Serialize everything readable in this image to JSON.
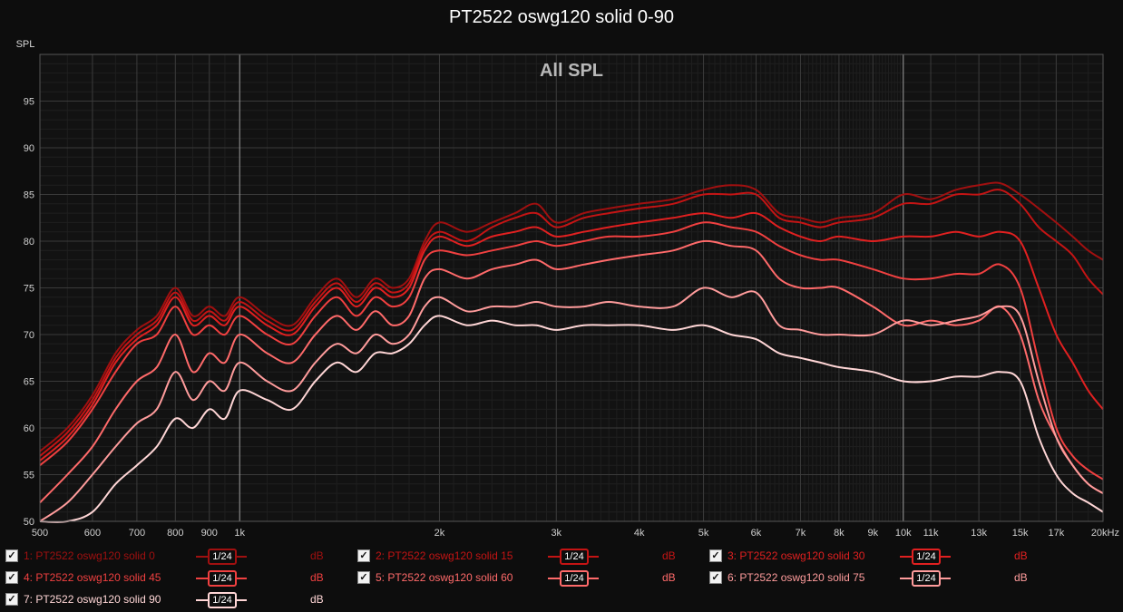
{
  "title": "PT2522 oswg120 solid 0-90",
  "chart_data": {
    "type": "line",
    "title": "PT2522 oswg120 solid 0-90",
    "inner_title": "All SPL",
    "ylabel": "SPL",
    "xlabel": "",
    "xscale": "log",
    "xlim": [
      500,
      20000
    ],
    "ylim": [
      50,
      100
    ],
    "x_ticks": [
      500,
      600,
      700,
      800,
      900,
      1000,
      2000,
      3000,
      4000,
      5000,
      6000,
      7000,
      8000,
      9000,
      10000,
      11000,
      13000,
      15000,
      17000,
      20000
    ],
    "x_tick_labels": [
      "500",
      "600",
      "700",
      "800",
      "900",
      "1k",
      "2k",
      "3k",
      "4k",
      "5k",
      "6k",
      "7k",
      "8k",
      "9k",
      "10k",
      "11k",
      "13k",
      "15k",
      "17k",
      "20kHz"
    ],
    "y_ticks": [
      50,
      55,
      60,
      65,
      70,
      75,
      80,
      85,
      90,
      95
    ],
    "grid": true,
    "legend_position": "bottom",
    "x": [
      500,
      550,
      600,
      650,
      700,
      750,
      800,
      850,
      900,
      950,
      1000,
      1100,
      1200,
      1300,
      1400,
      1500,
      1600,
      1700,
      1800,
      1900,
      2000,
      2200,
      2400,
      2600,
      2800,
      3000,
      3300,
      3600,
      4000,
      4500,
      5000,
      5500,
      6000,
      6500,
      7000,
      7500,
      8000,
      9000,
      10000,
      11000,
      12000,
      13000,
      14000,
      15000,
      16000,
      17000,
      18000,
      19000,
      20000
    ],
    "series": [
      {
        "name": "1: PT2522 oswg120 solid 0",
        "color": "#a01010",
        "values": [
          57.5,
          60,
          63.5,
          68,
          70.5,
          72,
          75,
          72,
          73,
          72,
          74,
          72,
          71,
          74,
          76,
          74,
          76,
          75,
          76,
          80,
          82,
          81,
          82,
          83,
          84,
          82,
          83,
          83.5,
          84,
          84.5,
          85.5,
          86,
          85.5,
          83,
          82.5,
          82,
          82.5,
          83,
          85,
          84.5,
          85.5,
          86,
          86.2,
          85,
          83.5,
          82,
          80.5,
          79,
          78
        ]
      },
      {
        "name": "2: PT2522 oswg120 solid 15",
        "color": "#c41414",
        "values": [
          57,
          59.5,
          63,
          67.5,
          70,
          71.5,
          74.5,
          71.5,
          72.5,
          71.5,
          73.5,
          71.5,
          70.5,
          73.5,
          75.5,
          73.5,
          75.5,
          74.5,
          75.5,
          79.5,
          81,
          80,
          81.5,
          82.5,
          83,
          81.5,
          82.5,
          83,
          83.5,
          84,
          85,
          85,
          85,
          82.5,
          82,
          81.5,
          82,
          82.5,
          84,
          84,
          85,
          85,
          85.5,
          84,
          81.5,
          80,
          78.5,
          76,
          74.3
        ]
      },
      {
        "name": "3: PT2522 oswg120 solid 30",
        "color": "#e02020",
        "values": [
          56.5,
          59,
          62.5,
          67,
          69.5,
          71,
          74,
          71,
          72,
          71,
          73,
          71,
          70,
          73,
          75,
          73,
          75,
          74,
          75,
          79,
          80.5,
          79.5,
          80.5,
          81,
          81.5,
          80.5,
          81,
          81.5,
          82,
          82.5,
          83,
          82.5,
          83,
          81.5,
          80.5,
          80,
          80.5,
          80,
          80.5,
          80.5,
          81,
          80.5,
          81,
          80,
          75,
          70,
          67,
          64,
          62
        ]
      },
      {
        "name": "4: PT2522 oswg120 solid 45",
        "color": "#f04040",
        "values": [
          56,
          58.5,
          62,
          66,
          69,
          70,
          73,
          70,
          71,
          70,
          72,
          70,
          69,
          72,
          74,
          72,
          74,
          73,
          74,
          78,
          79,
          78.5,
          79,
          79.5,
          80,
          79.5,
          80,
          80.5,
          80.5,
          81,
          82,
          81.5,
          81,
          79.5,
          78.5,
          78,
          78,
          77,
          76,
          76,
          76.5,
          76.5,
          77.5,
          75,
          67,
          60,
          57,
          55.5,
          54.5
        ]
      },
      {
        "name": "5: PT2522 oswg120 solid 60",
        "color": "#ff6a6a",
        "values": [
          52,
          55,
          58,
          62,
          65,
          66.5,
          70,
          66,
          68,
          67,
          70,
          68,
          67,
          70,
          72,
          70.5,
          72.5,
          71,
          72,
          76,
          77,
          76,
          77,
          77.5,
          78,
          77,
          77.5,
          78,
          78.5,
          79,
          80,
          79.5,
          79,
          76,
          75,
          75,
          75,
          73,
          71,
          71.5,
          71,
          71.5,
          73,
          70,
          63,
          59,
          56,
          54,
          53
        ]
      },
      {
        "name": "6: PT2522 oswg120 solid 75",
        "color": "#ff9c9c",
        "values": [
          50,
          52,
          55,
          58,
          60.5,
          62,
          66,
          63,
          65,
          64,
          67,
          65,
          64,
          67,
          69,
          68,
          70,
          69,
          70,
          73,
          74,
          72.5,
          73,
          73,
          73.5,
          73,
          73,
          73.5,
          73,
          73,
          75,
          74,
          74.5,
          71,
          70.5,
          70,
          70,
          70,
          71.5,
          71,
          71.5,
          72,
          73,
          72,
          65,
          59,
          56,
          54,
          53
        ]
      },
      {
        "name": "7: PT2522 oswg120 solid 90",
        "color": "#ffd6d6",
        "values": [
          47,
          49,
          51,
          54,
          56,
          58,
          61,
          60,
          62,
          61,
          64,
          63,
          62,
          65,
          67,
          66,
          68,
          68,
          69,
          71,
          72,
          71,
          71.5,
          71,
          71,
          70.5,
          71,
          71,
          71,
          70.5,
          71,
          70,
          69.5,
          68,
          67.5,
          67,
          66.5,
          66,
          65,
          65,
          65.5,
          65.5,
          66,
          65,
          59,
          55,
          53,
          52,
          51
        ]
      }
    ]
  },
  "legend": {
    "items": [
      {
        "label": "1: PT2522 oswg120 solid 0",
        "smoothing": "1/24",
        "unit": "dB",
        "checked": "✓",
        "color": "#a01010"
      },
      {
        "label": "2: PT2522 oswg120 solid 15",
        "smoothing": "1/24",
        "unit": "dB",
        "checked": "✓",
        "color": "#c41414"
      },
      {
        "label": "3: PT2522 oswg120 solid 30",
        "smoothing": "1/24",
        "unit": "dB",
        "checked": "✓",
        "color": "#e02020"
      },
      {
        "label": "4: PT2522 oswg120 solid 45",
        "smoothing": "1/24",
        "unit": "dB",
        "checked": "✓",
        "color": "#f04040"
      },
      {
        "label": "5: PT2522 oswg120 solid 60",
        "smoothing": "1/24",
        "unit": "dB",
        "checked": "✓",
        "color": "#ff6a6a"
      },
      {
        "label": "6: PT2522 oswg120 solid 75",
        "smoothing": "1/24",
        "unit": "dB",
        "checked": "✓",
        "color": "#ff9c9c"
      },
      {
        "label": "7: PT2522 oswg120 solid 90",
        "smoothing": "1/24",
        "unit": "dB",
        "checked": "✓",
        "color": "#ffd6d6"
      }
    ]
  }
}
